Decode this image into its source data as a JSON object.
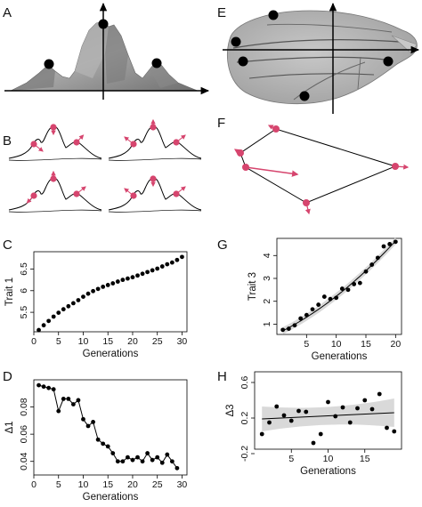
{
  "panel_labels": {
    "A": "A",
    "B": "B",
    "C": "C",
    "D": "D",
    "E": "E",
    "F": "F",
    "G": "G",
    "H": "H"
  },
  "colors": {
    "accent": "#d6456e",
    "ink": "#000000",
    "shade": "#d9d9d9"
  },
  "chart_data": [
    {
      "panel": "C",
      "type": "scatter",
      "xlabel": "Generations",
      "ylabel": "Trait 1",
      "xlim": [
        0,
        31
      ],
      "ylim": [
        5.05,
        6.9
      ],
      "xticks": [
        0,
        5,
        10,
        15,
        20,
        25,
        30
      ],
      "yticks": [
        5.5,
        6.0,
        6.5
      ],
      "x": [
        1,
        2,
        3,
        4,
        5,
        6,
        7,
        8,
        9,
        10,
        11,
        12,
        13,
        14,
        15,
        16,
        17,
        18,
        19,
        20,
        21,
        22,
        23,
        24,
        25,
        26,
        27,
        28,
        29,
        30
      ],
      "y": [
        5.09,
        5.2,
        5.3,
        5.4,
        5.49,
        5.57,
        5.64,
        5.71,
        5.78,
        5.86,
        5.93,
        5.99,
        6.04,
        6.09,
        6.13,
        6.17,
        6.21,
        6.25,
        6.28,
        6.31,
        6.35,
        6.39,
        6.43,
        6.47,
        6.51,
        6.56,
        6.61,
        6.65,
        6.71,
        6.78
      ]
    },
    {
      "panel": "D",
      "type": "line",
      "xlabel": "Generations",
      "ylabel": "Δ1",
      "xlim": [
        0,
        31
      ],
      "ylim": [
        0.03,
        0.1
      ],
      "xticks": [
        0,
        5,
        10,
        15,
        20,
        25,
        30
      ],
      "yticks": [
        0.04,
        0.06,
        0.08
      ],
      "x": [
        1,
        2,
        3,
        4,
        5,
        6,
        7,
        8,
        9,
        10,
        11,
        12,
        13,
        14,
        15,
        16,
        17,
        18,
        19,
        20,
        21,
        22,
        23,
        24,
        25,
        26,
        27,
        28,
        29
      ],
      "y": [
        0.096,
        0.095,
        0.094,
        0.093,
        0.077,
        0.086,
        0.086,
        0.082,
        0.085,
        0.071,
        0.066,
        0.069,
        0.056,
        0.053,
        0.051,
        0.046,
        0.04,
        0.04,
        0.043,
        0.041,
        0.043,
        0.04,
        0.046,
        0.041,
        0.043,
        0.039,
        0.045,
        0.04,
        0.035
      ]
    },
    {
      "panel": "G",
      "type": "scatter",
      "xlabel": "Generations",
      "ylabel": "Trait 3",
      "xlim": [
        0,
        21
      ],
      "ylim": [
        0.55,
        4.75
      ],
      "xticks": [
        5,
        10,
        15,
        20
      ],
      "yticks": [
        1,
        2,
        3,
        4
      ],
      "x": [
        1,
        2,
        3,
        4,
        5,
        6,
        7,
        8,
        9,
        10,
        11,
        12,
        13,
        14,
        15,
        16,
        17,
        18,
        19,
        20
      ],
      "y": [
        0.75,
        0.8,
        0.95,
        1.25,
        1.4,
        1.65,
        1.85,
        2.2,
        2.1,
        2.15,
        2.55,
        2.5,
        2.75,
        2.8,
        3.3,
        3.6,
        3.9,
        4.4,
        4.5,
        4.6
      ],
      "fit": {
        "x": [
          1,
          20
        ],
        "intercept": 0.58,
        "slope": 0.125,
        "quadratic": 0.0039
      }
    },
    {
      "panel": "H",
      "type": "scatter",
      "xlabel": "Generations",
      "ylabel": "Δ3",
      "xlim": [
        0,
        20
      ],
      "ylim": [
        -0.15,
        0.72
      ],
      "xticks": [
        5,
        10,
        15
      ],
      "yticks": [
        -0.2,
        0.2,
        0.6
      ],
      "ytick_labels": [
        "-0.2",
        "0.2",
        "0.6"
      ],
      "x": [
        1,
        2,
        3,
        4,
        5,
        6,
        7,
        8,
        9,
        10,
        11,
        12,
        13,
        14,
        15,
        16,
        17,
        18,
        19
      ],
      "y": [
        0.02,
        0.15,
        0.33,
        0.23,
        0.17,
        0.28,
        0.27,
        -0.08,
        0.02,
        0.38,
        0.22,
        0.32,
        0.15,
        0.31,
        0.4,
        0.3,
        0.47,
        0.09,
        0.05
      ],
      "fit": {
        "x": [
          1,
          19
        ],
        "y": [
          0.19,
          0.26
        ]
      }
    }
  ]
}
